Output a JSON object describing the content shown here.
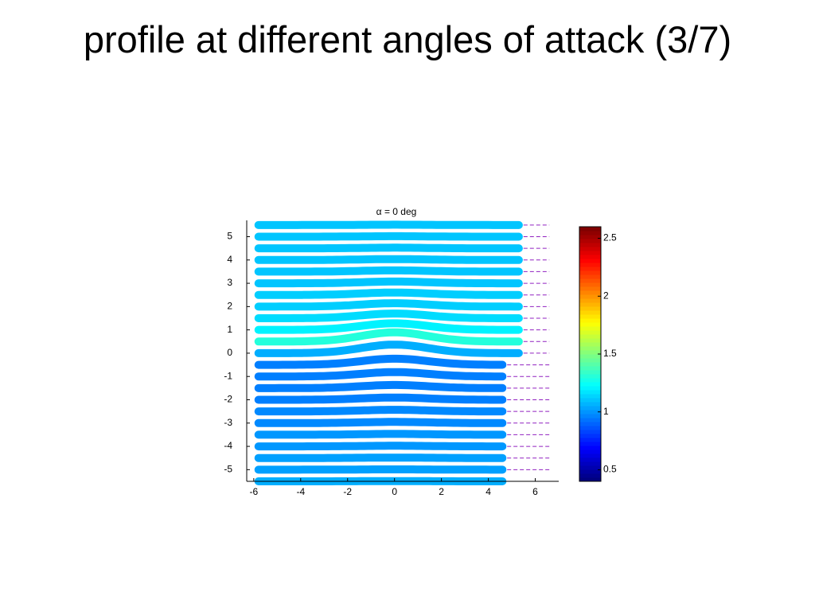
{
  "slide": {
    "title": "profile at different angles of attack (3/7)"
  },
  "chart_data": {
    "type": "streamline",
    "title": "α = 0 deg",
    "xlim": [
      -6.3,
      7
    ],
    "xticks": [
      -6,
      -4,
      -2,
      0,
      2,
      4,
      6
    ],
    "ylim": [
      -5.5,
      5.7
    ],
    "yticks": [
      -5,
      -4,
      -3,
      -2,
      -1,
      0,
      1,
      2,
      3,
      4,
      5
    ],
    "streamlines": {
      "y0": [
        5.5,
        5,
        4.5,
        4,
        3.5,
        3,
        2.5,
        2,
        1.5,
        1,
        0.5,
        0,
        -0.5,
        -1,
        -1.5,
        -2,
        -2.5,
        -3,
        -3.5,
        -4,
        -4.5,
        -5,
        -5.5
      ],
      "speed": [
        1.1,
        1.1,
        1.1,
        1.1,
        1.1,
        1.1,
        1.12,
        1.12,
        1.15,
        1.2,
        1.3,
        1.05,
        0.95,
        0.95,
        0.95,
        0.95,
        0.97,
        0.97,
        1.0,
        1.0,
        1.02,
        1.02,
        1.05
      ]
    },
    "colorbar": {
      "lim": [
        0.4,
        2.6
      ],
      "ticks": [
        0.5,
        1,
        1.5,
        2,
        2.5
      ]
    }
  }
}
